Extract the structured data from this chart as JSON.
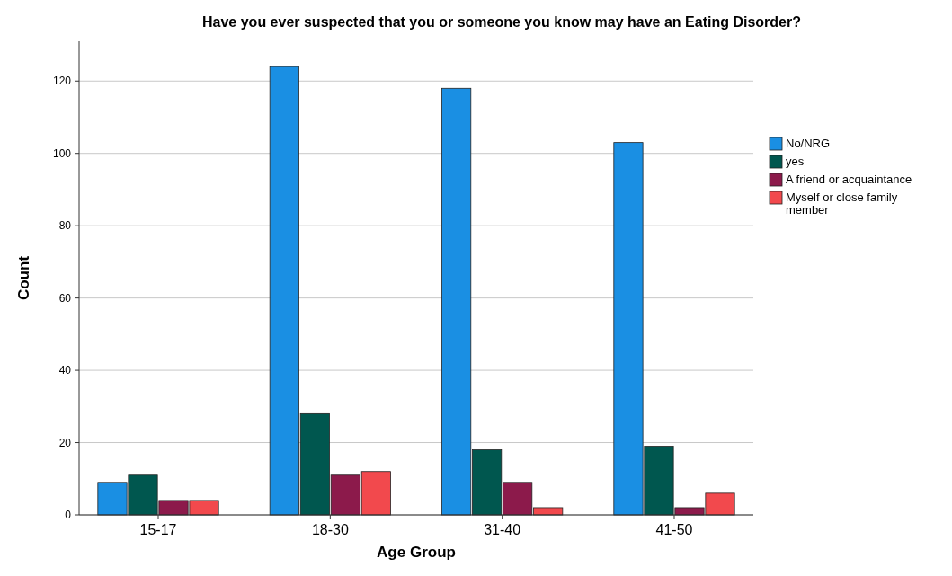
{
  "chart_data": {
    "type": "bar",
    "title": "Have you ever suspected that you or someone you know may have an Eating Disorder?",
    "xlabel": "Age Group",
    "ylabel": "Count",
    "categories": [
      "15-17",
      "18-30",
      "31-40",
      "41-50"
    ],
    "series": [
      {
        "name": "No/NRG",
        "color": "#1a8fe3",
        "values": [
          9,
          124,
          118,
          103
        ]
      },
      {
        "name": "yes",
        "color": "#00574f",
        "values": [
          11,
          28,
          18,
          19
        ]
      },
      {
        "name": "A friend or acquaintance",
        "color": "#8c1a4b",
        "values": [
          4,
          11,
          9,
          2
        ]
      },
      {
        "name": "Myself or close family member",
        "color": "#f2494d",
        "values": [
          4,
          12,
          2,
          6
        ]
      }
    ],
    "ylim": [
      0,
      131
    ],
    "yticks": [
      0,
      20,
      40,
      60,
      80,
      100,
      120
    ],
    "grid": "y",
    "legend": "right"
  }
}
